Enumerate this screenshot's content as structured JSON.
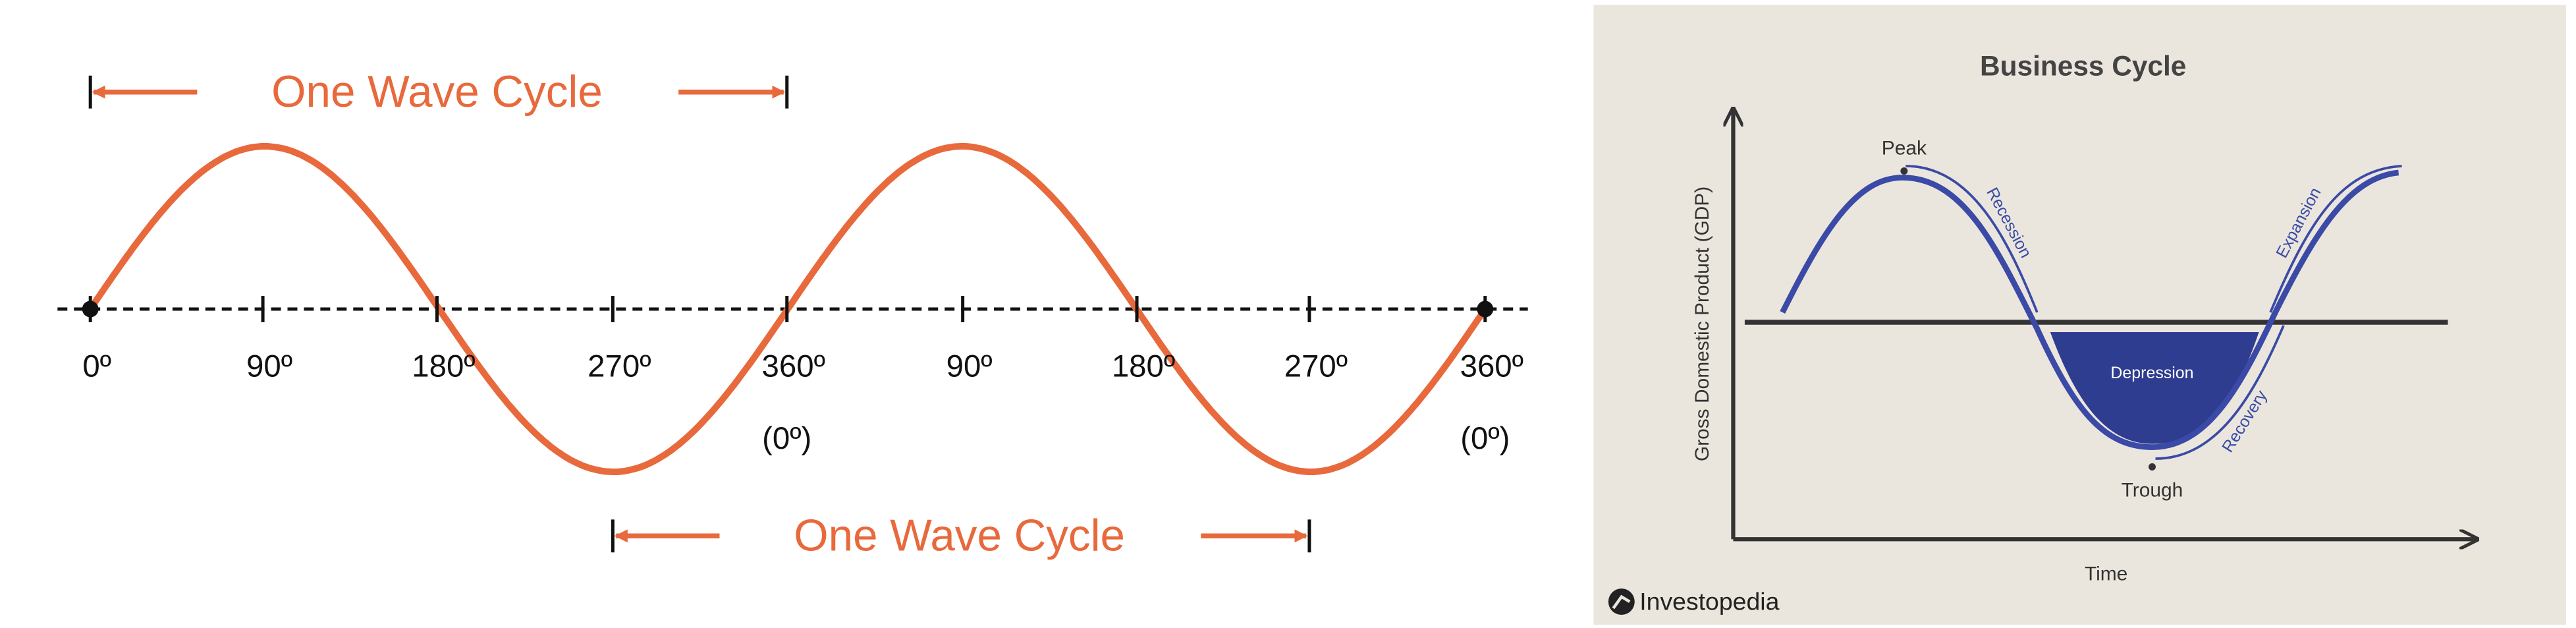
{
  "wave": {
    "top_label": "One Wave Cycle",
    "bottom_label": "One Wave Cycle",
    "ticks": [
      "0º",
      "90º",
      "180º",
      "270º",
      "360º",
      "90º",
      "180º",
      "270º",
      "360º"
    ],
    "sub_labels": [
      "(0º)",
      "(0º)"
    ]
  },
  "business_cycle": {
    "title": "Business Cycle",
    "y_axis": "Gross Domestic Product (GDP)",
    "x_axis": "Time",
    "peak": "Peak",
    "trough": "Trough",
    "recession": "Recession",
    "expansion": "Expansion",
    "depression": "Depression",
    "recovery": "Recovery",
    "logo": "Investopedia"
  }
}
